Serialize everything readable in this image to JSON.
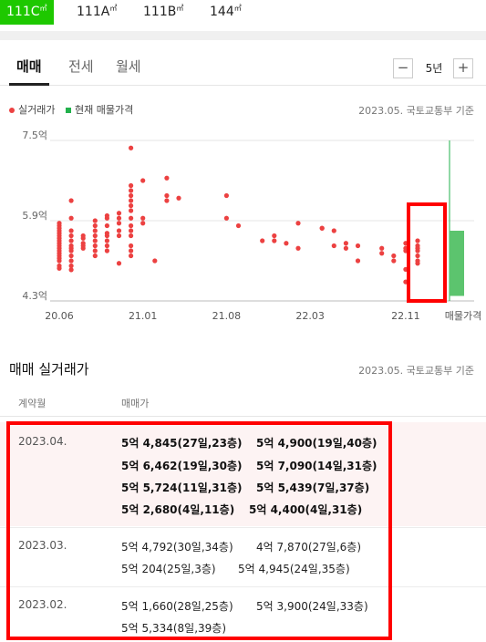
{
  "area_tabs": [
    {
      "label": "111C",
      "unit": "㎡",
      "active": true
    },
    {
      "label": "111A",
      "unit": "㎡",
      "active": false
    },
    {
      "label": "111B",
      "unit": "㎡",
      "active": false
    },
    {
      "label": "144",
      "unit": "㎡",
      "active": false
    }
  ],
  "deal_tabs": [
    "매매",
    "전세",
    "월세"
  ],
  "period": {
    "minus": "−",
    "label": "5년",
    "plus": "+"
  },
  "legend": {
    "actual": "실거래가",
    "current": "현재 매물가격"
  },
  "source_note": "2023.05. 국토교통부 기준",
  "chart_data": {
    "type": "scatter",
    "y_tick_labels": [
      "7.5억",
      "5.9억",
      "4.3억"
    ],
    "y_ticks": [
      7.5,
      5.9,
      4.3
    ],
    "ylim": [
      4.3,
      7.5
    ],
    "x_tick_labels": [
      "20.06",
      "21.01",
      "21.08",
      "22.03",
      "22.11"
    ],
    "x_tick_positions": [
      0,
      7,
      14,
      21,
      29
    ],
    "listing_label": "매물가격",
    "listing_range": [
      4.4,
      5.7
    ],
    "listing_max": 7.5,
    "series": [
      {
        "name": "실거래가",
        "color": "#ec4141",
        "points": [
          [
            0,
            5.8
          ],
          [
            0,
            5.75
          ],
          [
            0,
            5.7
          ],
          [
            0,
            5.65
          ],
          [
            0,
            5.6
          ],
          [
            0,
            5.55
          ],
          [
            0,
            5.5
          ],
          [
            0,
            5.45
          ],
          [
            0,
            5.4
          ],
          [
            0,
            5.35
          ],
          [
            0,
            5.3
          ],
          [
            0,
            5.25
          ],
          [
            0,
            5.2
          ],
          [
            0,
            5.15
          ],
          [
            0,
            5.1
          ],
          [
            0,
            5.0
          ],
          [
            0,
            4.95
          ],
          [
            0,
            5.85
          ],
          [
            1,
            5.95
          ],
          [
            1,
            5.7
          ],
          [
            1,
            5.6
          ],
          [
            1,
            5.5
          ],
          [
            1,
            5.4
          ],
          [
            1,
            5.35
          ],
          [
            1,
            5.3
          ],
          [
            1,
            5.2
          ],
          [
            1,
            5.1
          ],
          [
            1,
            5.0
          ],
          [
            1,
            4.92
          ],
          [
            1,
            6.3
          ],
          [
            2,
            5.6
          ],
          [
            2,
            5.55
          ],
          [
            2,
            5.45
          ],
          [
            2,
            5.4
          ],
          [
            2,
            5.35
          ],
          [
            3,
            5.8
          ],
          [
            3,
            5.7
          ],
          [
            3,
            5.6
          ],
          [
            3,
            5.5
          ],
          [
            3,
            5.4
          ],
          [
            3,
            5.3
          ],
          [
            3,
            5.2
          ],
          [
            3,
            5.9
          ],
          [
            4,
            5.95
          ],
          [
            4,
            6.0
          ],
          [
            4,
            5.8
          ],
          [
            4,
            5.65
          ],
          [
            4,
            5.6
          ],
          [
            4,
            5.5
          ],
          [
            4,
            5.4
          ],
          [
            4,
            5.3
          ],
          [
            5,
            5.95
          ],
          [
            5,
            5.85
          ],
          [
            5,
            5.7
          ],
          [
            5,
            5.6
          ],
          [
            5,
            5.05
          ],
          [
            5,
            6.05
          ],
          [
            6,
            6.5
          ],
          [
            6,
            6.3
          ],
          [
            6,
            6.2
          ],
          [
            6,
            6.1
          ],
          [
            6,
            5.95
          ],
          [
            6,
            5.8
          ],
          [
            6,
            5.7
          ],
          [
            6,
            5.6
          ],
          [
            6,
            5.4
          ],
          [
            6,
            5.3
          ],
          [
            6,
            5.2
          ],
          [
            6,
            6.4
          ],
          [
            6,
            6.6
          ],
          [
            6,
            7.35
          ],
          [
            7,
            6.7
          ],
          [
            7,
            5.95
          ],
          [
            7,
            5.85
          ],
          [
            8,
            5.1
          ],
          [
            9,
            6.75
          ],
          [
            9,
            6.4
          ],
          [
            9,
            6.3
          ],
          [
            10,
            6.35
          ],
          [
            14,
            6.4
          ],
          [
            14,
            5.95
          ],
          [
            15,
            5.8
          ],
          [
            17,
            5.5
          ],
          [
            18,
            5.6
          ],
          [
            18,
            5.5
          ],
          [
            19,
            5.45
          ],
          [
            20,
            5.35
          ],
          [
            20,
            5.85
          ],
          [
            22,
            5.75
          ],
          [
            22,
            5.75
          ],
          [
            23,
            5.7
          ],
          [
            23,
            5.4
          ],
          [
            24,
            5.45
          ],
          [
            24,
            5.35
          ],
          [
            25,
            5.4
          ],
          [
            25,
            5.1
          ],
          [
            27,
            5.35
          ],
          [
            27,
            5.25
          ],
          [
            28,
            5.2
          ],
          [
            28,
            5.1
          ],
          [
            29,
            5.45
          ],
          [
            29,
            5.35
          ],
          [
            29,
            5.3
          ],
          [
            29,
            4.68
          ],
          [
            29,
            4.93
          ],
          [
            30,
            5.4
          ],
          [
            30,
            5.35
          ],
          [
            30,
            5.3
          ],
          [
            30,
            5.2
          ],
          [
            30,
            5.1
          ],
          [
            30,
            5.5
          ],
          [
            30,
            5.05
          ]
        ]
      }
    ]
  },
  "section": {
    "title": "매매 실거래가",
    "source_note": "2023.05. 국토교통부 기준",
    "col_month": "계약월",
    "col_price": "매매가",
    "rows": [
      {
        "month": "2023.04.",
        "lines": [
          [
            "5억 4,845(27일,23층)",
            "5억 4,900(19일,40층)"
          ],
          [
            "5억 6,462(19일,30층)",
            "5억 7,090(14일,31층)"
          ],
          [
            "5억 5,724(11일,31층)",
            "5억 5,439(7일,37층)"
          ],
          [
            "5억 2,680(4일,11층)",
            "5억 4,400(4일,31층)"
          ]
        ]
      },
      {
        "month": "2023.03.",
        "lines": [
          [
            "5억 4,792(30일,34층)",
            "4억 7,870(27일,6층)"
          ],
          [
            "5억 204(25일,3층)",
            "5억 4,945(24일,35층)"
          ]
        ]
      },
      {
        "month": "2023.02.",
        "lines": [
          [
            "5억 1,660(28일,25층)",
            "5억 3,900(24일,33층)"
          ],
          [
            "5억 5,334(8일,39층)"
          ]
        ]
      }
    ]
  }
}
